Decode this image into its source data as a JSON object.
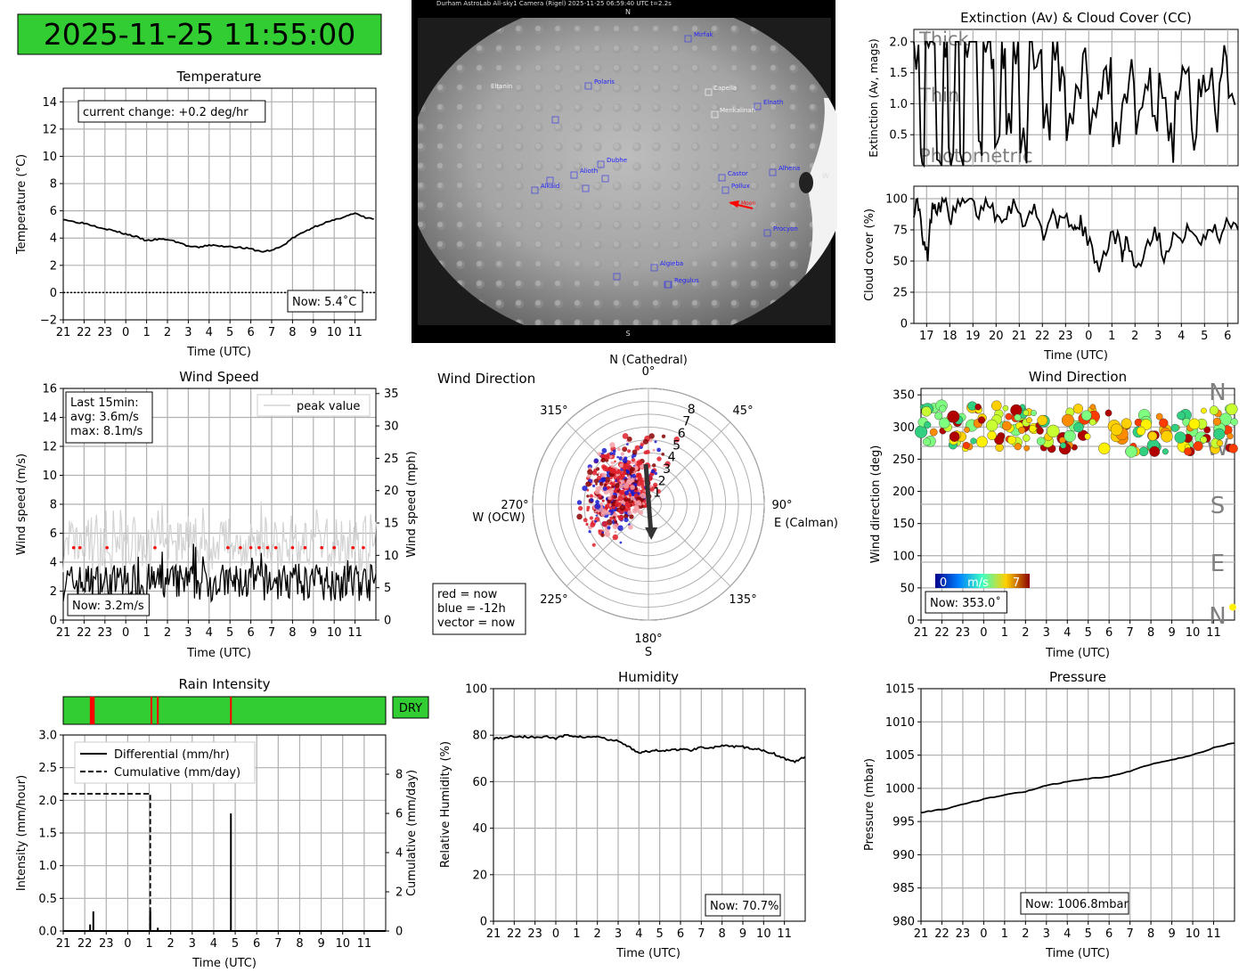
{
  "timestamp": "2025-11-25 11:55:00",
  "colors": {
    "green": "#32cd32",
    "red": "#ff0000",
    "grid": "#b0b0b0",
    "peak": "#d3d3d3",
    "label_grey": "#808080"
  },
  "time_ticks_12h": [
    "21",
    "22",
    "23",
    "0",
    "1",
    "2",
    "3",
    "4",
    "5",
    "6",
    "7",
    "8",
    "9",
    "10",
    "11"
  ],
  "time_ticks_ext": [
    "17",
    "18",
    "19",
    "20",
    "21",
    "22",
    "23",
    "0",
    "1",
    "2",
    "3",
    "4",
    "5",
    "6"
  ],
  "camera": {
    "header": "Durham AstroLab All-sky1 Camera (Rigel)        2025-11-25 06:59:40 UTC        t=2.2s",
    "north": "N",
    "south": "S",
    "west": "W",
    "stars_blue": [
      "Mirfak",
      "Polaris",
      "Elnath",
      "Alhena",
      "Castor",
      "Pollux",
      "Dubhe",
      "Alioth",
      "Alkaid",
      "Procyon",
      "Algieba",
      "Regulus"
    ],
    "stars_white": [
      "Capella",
      "Menkalinan",
      "Eltanin"
    ],
    "moon_label": "Moon"
  },
  "chart_data": [
    {
      "id": "temperature",
      "type": "line",
      "title": "Temperature",
      "xlabel": "Time (UTC)",
      "ylabel": "Temperature (°C)",
      "ylim": [
        -2,
        15
      ],
      "yticks": [
        "−2",
        "0",
        "2",
        "4",
        "6",
        "8",
        "10",
        "12",
        "14"
      ],
      "x_hours_start": 21,
      "x_span_hours": 15,
      "series": [
        {
          "name": "temperature",
          "x": [
            0,
            0.5,
            1,
            1.5,
            2,
            2.5,
            3,
            3.5,
            4,
            4.5,
            5,
            5.5,
            6,
            6.5,
            7,
            7.5,
            8,
            8.5,
            9,
            9.5,
            10,
            10.5,
            11,
            11.5,
            12,
            12.5,
            13,
            13.5,
            14,
            14.5,
            14.9
          ],
          "values": [
            5.4,
            5.2,
            5.1,
            4.9,
            4.7,
            4.5,
            4.3,
            4.1,
            3.8,
            3.9,
            3.9,
            3.7,
            3.4,
            3.3,
            3.5,
            3.4,
            3.4,
            3.3,
            3.2,
            3.0,
            3.1,
            3.4,
            4.0,
            4.4,
            4.8,
            5.1,
            5.3,
            5.6,
            5.8,
            5.5,
            5.4
          ]
        }
      ],
      "reference_line": 0,
      "annotation": "current change: +0.2 deg/hr",
      "now_label": "Now: 5.4˚C"
    },
    {
      "id": "extinction",
      "type": "line",
      "title": "Extinction (Av) & Cloud Cover (CC)",
      "ylabel": "Extinction (Av, mags)",
      "ylim": [
        0,
        2.2
      ],
      "yticks": [
        "0.5",
        "1.0",
        "1.5",
        "2.0"
      ],
      "x_hours_start": 17,
      "x_span_hours": 14,
      "bands": [
        "Thick",
        "Thin",
        "Photometric"
      ],
      "series": [
        {
          "name": "Av",
          "x": [
            0,
            0.3,
            0.5,
            0.7,
            1,
            1.3,
            1.5,
            1.8,
            2,
            2.2,
            2.5,
            2.8,
            3,
            3.3,
            3.5,
            3.8,
            4,
            4.3,
            4.6,
            5,
            5.3,
            5.6,
            6,
            6.3,
            6.6,
            7,
            7.3,
            7.6,
            8,
            8.3,
            8.6,
            9,
            9.3,
            9.6,
            10,
            10.3,
            10.6,
            11,
            11.3,
            11.6,
            12,
            12.3,
            12.6,
            13,
            13.3,
            13.6,
            14
          ],
          "values": [
            2.0,
            0.2,
            2.0,
            2.0,
            0.1,
            2.0,
            0.3,
            2.0,
            0.2,
            2.0,
            2.0,
            0.4,
            2.0,
            2.0,
            0.3,
            2.0,
            0.5,
            2.0,
            0.2,
            2.0,
            1.6,
            0.6,
            2.0,
            1.2,
            0.4,
            1.3,
            1.8,
            0.5,
            1.2,
            1.6,
            0.3,
            1.0,
            1.4,
            0.5,
            1.3,
            0.8,
            1.5,
            0.4,
            1.2,
            1.6,
            0.6,
            1.4,
            1.2,
            0.9,
            1.5,
            1.1,
            1.3
          ]
        }
      ]
    },
    {
      "id": "cloud_cover",
      "type": "line",
      "xlabel": "Time (UTC)",
      "ylabel": "Cloud cover (%)",
      "ylim": [
        0,
        110
      ],
      "yticks": [
        "0",
        "25",
        "50",
        "75",
        "100"
      ],
      "x_hours_start": 17,
      "x_span_hours": 14,
      "series": [
        {
          "name": "CC",
          "x": [
            0,
            0.2,
            0.4,
            0.6,
            0.8,
            1,
            1.3,
            1.6,
            2,
            2.4,
            2.8,
            3.2,
            3.6,
            4,
            4.4,
            4.8,
            5.2,
            5.6,
            6,
            6.4,
            6.8,
            7,
            7.2,
            7.6,
            8,
            8.4,
            8.8,
            9,
            9.2,
            9.6,
            10,
            10.4,
            10.8,
            11.2,
            11.6,
            12,
            12.4,
            12.8,
            13.2,
            13.6,
            14
          ],
          "values": [
            92,
            97,
            62,
            55,
            98,
            93,
            99,
            85,
            95,
            98,
            88,
            100,
            85,
            90,
            97,
            80,
            92,
            72,
            88,
            78,
            85,
            72,
            80,
            62,
            48,
            65,
            72,
            55,
            70,
            42,
            60,
            78,
            55,
            72,
            65,
            80,
            60,
            78,
            70,
            85,
            75
          ]
        }
      ]
    },
    {
      "id": "wind_speed",
      "type": "line",
      "title": "Wind Speed",
      "xlabel": "Time (UTC)",
      "ylabel": "Wind speed (m/s)",
      "ylabel_right": "Wind speed (mph)",
      "ylim": [
        0,
        16
      ],
      "yticks": [
        "0",
        "2",
        "4",
        "6",
        "8",
        "10",
        "12",
        "14",
        "16"
      ],
      "yticks_right": [
        "0",
        "5",
        "10",
        "15",
        "20",
        "25",
        "30",
        "35"
      ],
      "x_hours_start": 21,
      "x_span_hours": 15,
      "legend": [
        "peak value"
      ],
      "stats": [
        "Last 15min:",
        "avg: 3.6m/s",
        "max: 8.1m/s"
      ],
      "series": [
        {
          "name": "avg",
          "seed": 7,
          "mean": 2.6,
          "spread": 1.4
        }
      ],
      "now_label": "Now: 3.2m/s"
    },
    {
      "id": "wind_polar",
      "type": "scatter",
      "title": "Wind Direction",
      "angle_labels": [
        "0°",
        "45°",
        "90°",
        "135°",
        "180°",
        "225°",
        "270°",
        "315°"
      ],
      "cardinal_labels": [
        "N (Cathedral)",
        "E (Calman)",
        "S",
        "W (OCW)"
      ],
      "radial_ticks": [
        "1",
        "2",
        "3",
        "4",
        "5",
        "6",
        "7",
        "8"
      ],
      "rmax": 9,
      "mean_direction_deg": 300,
      "mean_speed": 2.8,
      "vector_direction_deg": 175,
      "vector_length": 2.5,
      "legend": [
        "red = now",
        "blue = -12h",
        "vector = now"
      ]
    },
    {
      "id": "wind_direction",
      "type": "scatter",
      "title": "Wind Direction",
      "xlabel": "Time (UTC)",
      "ylabel": "Wind direction (deg)",
      "ylim": [
        0,
        360
      ],
      "yticks": [
        "0",
        "50",
        "100",
        "150",
        "200",
        "250",
        "300",
        "350"
      ],
      "x_hours_start": 21,
      "x_span_hours": 15,
      "compass_labels": [
        "N",
        "W",
        "S",
        "E",
        "N"
      ],
      "colorbar_labels": [
        "0",
        "m/s",
        "7"
      ],
      "mean_direction": 300,
      "now_label": "Now: 353.0˚"
    },
    {
      "id": "rain",
      "type": "line",
      "title": "Rain Intensity",
      "xlabel": "Time (UTC)",
      "ylabel": "Intensity (mm/hour)",
      "ylabel_right": "Cumulative (mm/day)",
      "ylim": [
        0,
        3
      ],
      "yticks": [
        "0.0",
        "0.5",
        "1.0",
        "1.5",
        "2.0",
        "2.5",
        "3.0"
      ],
      "yticks_right": [
        "0",
        "2",
        "4",
        "6",
        "8"
      ],
      "x_hours_start": 21,
      "x_span_hours": 15,
      "status": "DRY",
      "wet_marks_hours": [
        1.3,
        1.35,
        1.4,
        4.1,
        4.4,
        7.8
      ],
      "legend": [
        "Differential (mm/hr)",
        "Cumulative (mm/day)"
      ],
      "spikes": [
        {
          "x": 1.25,
          "y": 0.1
        },
        {
          "x": 1.4,
          "y": 0.3
        },
        {
          "x": 4.05,
          "y": 0.3
        },
        {
          "x": 4.4,
          "y": 0.05
        },
        {
          "x": 7.8,
          "y": 1.8
        }
      ],
      "cumulative": {
        "x": [
          0,
          4.05,
          4.05,
          15
        ],
        "values": [
          7.0,
          7.0,
          0.0,
          0.0
        ],
        "max": 10
      }
    },
    {
      "id": "humidity",
      "type": "line",
      "title": "Humidity",
      "xlabel": "Time (UTC)",
      "ylabel": "Relative Humidity (%)",
      "ylim": [
        0,
        100
      ],
      "yticks": [
        "0",
        "20",
        "40",
        "60",
        "80",
        "100"
      ],
      "x_hours_start": 21,
      "x_span_hours": 15,
      "series": [
        {
          "name": "RH",
          "x": [
            0,
            0.5,
            1,
            1.5,
            2,
            2.5,
            3,
            3.5,
            4,
            4.5,
            5,
            5.5,
            6,
            6.5,
            7,
            7.5,
            8,
            8.5,
            9,
            9.5,
            10,
            10.5,
            11,
            11.5,
            12,
            12.5,
            13,
            13.5,
            14,
            14.5,
            15
          ],
          "values": [
            78.5,
            79,
            79.5,
            79.3,
            79,
            79.5,
            78.5,
            80,
            79.5,
            79,
            79.5,
            78,
            77.5,
            75,
            72.5,
            73,
            73.5,
            73.5,
            74,
            73.5,
            75,
            74.5,
            75.5,
            75,
            75,
            74,
            73.5,
            72,
            70,
            68.5,
            70.7
          ]
        }
      ],
      "now_label": "Now: 70.7%"
    },
    {
      "id": "pressure",
      "type": "line",
      "title": "Pressure",
      "xlabel": "Time (UTC)",
      "ylabel": "Pressure (mbar)",
      "ylim": [
        980,
        1015
      ],
      "yticks": [
        "980",
        "985",
        "990",
        "995",
        "1000",
        "1005",
        "1010",
        "1015"
      ],
      "x_hours_start": 21,
      "x_span_hours": 15,
      "series": [
        {
          "name": "P",
          "x": [
            0,
            1,
            2,
            3,
            4,
            5,
            6,
            7,
            8,
            9,
            10,
            11,
            12,
            13,
            14,
            15
          ],
          "values": [
            996.4,
            996.8,
            997.6,
            998.4,
            999.0,
            999.5,
            1000.4,
            1001.0,
            1001.4,
            1001.8,
            1002.6,
            1003.6,
            1004.3,
            1005.0,
            1006.1,
            1006.8
          ]
        }
      ],
      "now_label": "Now: 1006.8mbar"
    }
  ]
}
